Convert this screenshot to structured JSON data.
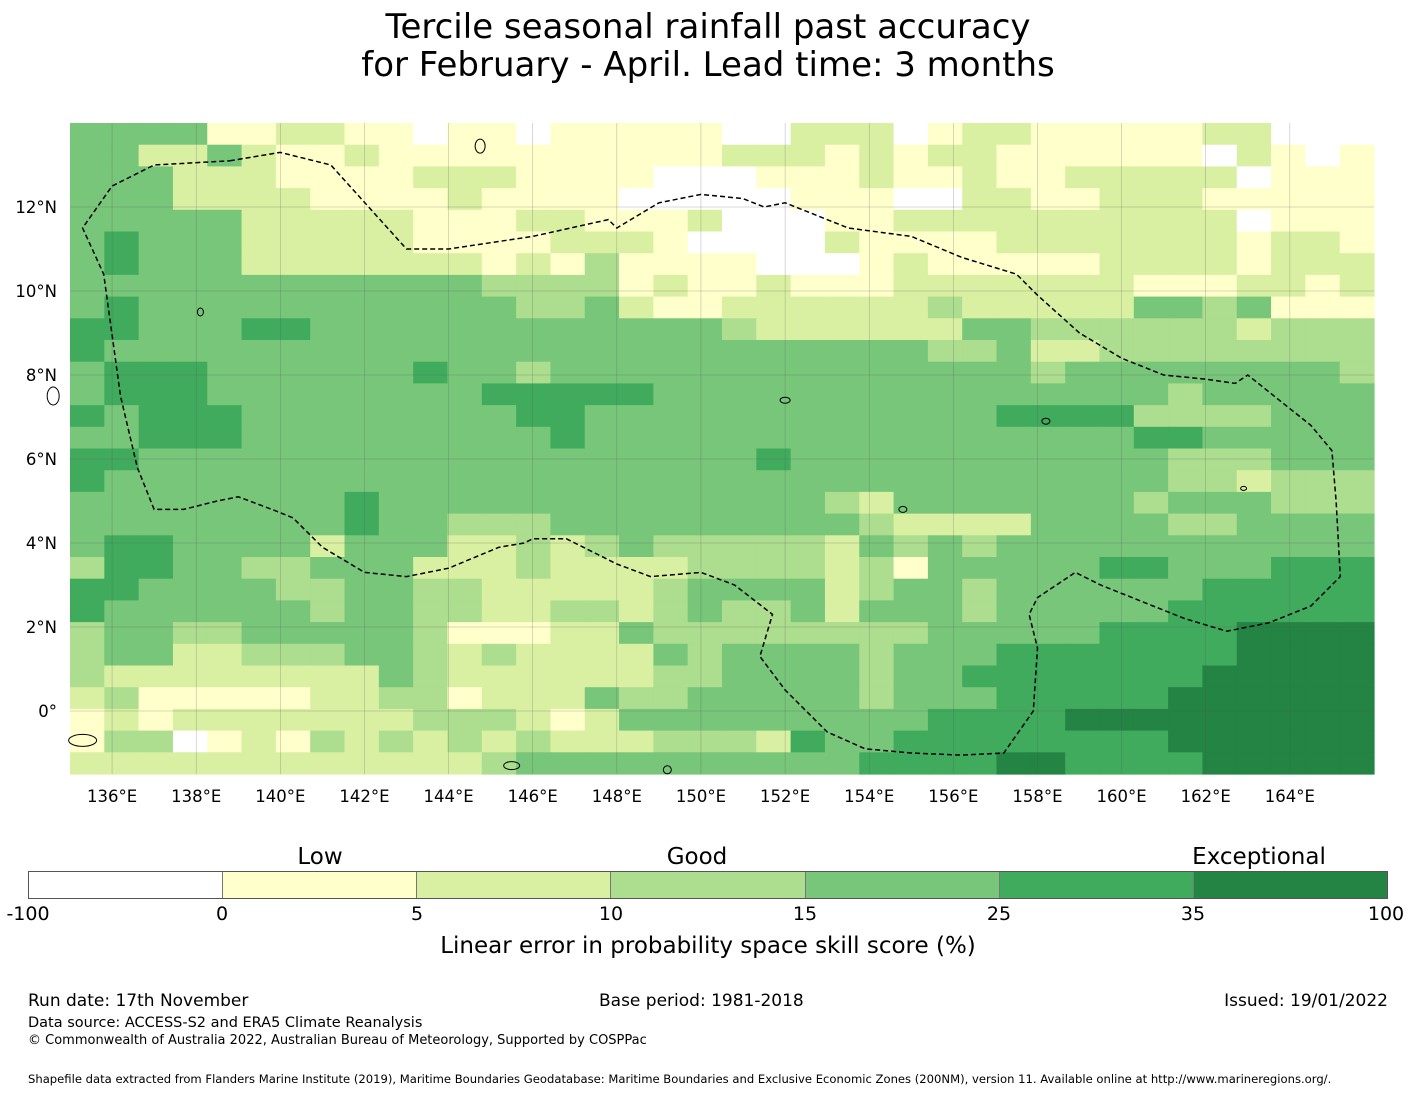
{
  "title": {
    "line1": "Tercile seasonal rainfall past accuracy",
    "line2": "for February - April. Lead time: 3 months"
  },
  "map": {
    "lon_range": [
      135.0,
      166.0
    ],
    "lat_range": [
      -1.5,
      14.0
    ],
    "lon_ticks": [
      "136°E",
      "138°E",
      "140°E",
      "142°E",
      "144°E",
      "146°E",
      "148°E",
      "150°E",
      "152°E",
      "154°E",
      "156°E",
      "158°E",
      "160°E",
      "162°E",
      "164°E"
    ],
    "lat_ticks": [
      "12°N",
      "10°N",
      "8°N",
      "6°N",
      "4°N",
      "2°N",
      "0°"
    ],
    "colors": {
      "c0": "#ffffff",
      "c1": "#ffffcc",
      "c2": "#d9f0a3",
      "c3": "#addd8e",
      "c4": "#78c679",
      "c5": "#41ab5d",
      "c6": "#238443"
    },
    "grid_rows": [
      "44441122110110111110022201221111122000",
      "44224211211111111112221212211111102101",
      "44422211112221111000111211211222220111",
      "44422221111211110000011100221122211111",
      "44444222221112211120001122222222220111",
      "45444222221111222100002111122222221221",
      "45444222222212131111000121111122221222",
      "44444444444433331211211122222221112212",
      "45444444444443342112222223222224434111",
      "55444554444444444443222222443333332333",
      "54444444444444444444444443342233333333",
      "45554444445443444444444444443444444443",
      "45554444444455555444444444444444344444",
      "54555444444445544444444444455553333444",
      "44555444444444544444444444444445544444",
      "55444444444444444444544444444444333444",
      "54444444444444444444444444444444332333",
      "44444444544444444444443244444443444333",
      "44444444544333444444444322224444334444",
      "45544442444223234333332434344444444444",
      "35544334442223222233332314444455444555",
      "55444433443322222344442344344444455555",
      "54444443443322332343342444344444555555",
      "34433444443111224333333334444455556666",
      "34422333443232222434444344455555556666",
      "32222222243222222334444344555555566666",
      "23111112233122243344444344455555666666",
      "12122222223332124444444445555666666666",
      "13301213232323222333254455555555666666",
      "22222222222234444444444555566555566666"
    ],
    "eez_boundary": [
      [
        138.8,
        13.1
      ],
      [
        140.0,
        13.3
      ],
      [
        141.2,
        13.0
      ],
      [
        143.0,
        11.0
      ],
      [
        144.0,
        11.0
      ],
      [
        146.0,
        11.3
      ],
      [
        147.8,
        11.7
      ],
      [
        148.0,
        11.5
      ],
      [
        149.0,
        12.1
      ],
      [
        150.0,
        12.3
      ],
      [
        151.0,
        12.2
      ],
      [
        151.5,
        12.0
      ],
      [
        152.0,
        12.1
      ],
      [
        153.5,
        11.5
      ],
      [
        155.0,
        11.3
      ],
      [
        156.2,
        10.8
      ],
      [
        157.5,
        10.4
      ],
      [
        158.0,
        9.9
      ],
      [
        159.0,
        9.0
      ],
      [
        160.0,
        8.4
      ],
      [
        161.0,
        8.0
      ],
      [
        162.0,
        7.9
      ],
      [
        162.7,
        7.8
      ],
      [
        163.0,
        8.0
      ],
      [
        164.5,
        6.8
      ],
      [
        165.0,
        6.2
      ],
      [
        165.1,
        5.0
      ],
      [
        165.2,
        3.2
      ],
      [
        164.5,
        2.5
      ],
      [
        163.5,
        2.1
      ],
      [
        162.5,
        1.9
      ],
      [
        161.5,
        2.2
      ],
      [
        160.5,
        2.6
      ],
      [
        159.5,
        3.0
      ],
      [
        158.9,
        3.3
      ],
      [
        158.0,
        2.7
      ],
      [
        157.8,
        2.3
      ],
      [
        158.0,
        1.5
      ],
      [
        157.9,
        0.0
      ],
      [
        157.2,
        -1.0
      ],
      [
        156.2,
        -1.05
      ],
      [
        155.0,
        -1.0
      ],
      [
        153.9,
        -0.9
      ],
      [
        153.0,
        -0.5
      ],
      [
        152.0,
        0.5
      ],
      [
        151.4,
        1.3
      ],
      [
        151.7,
        2.3
      ],
      [
        150.8,
        3.0
      ],
      [
        150.0,
        3.3
      ],
      [
        148.8,
        3.2
      ],
      [
        148.0,
        3.5
      ],
      [
        147.2,
        3.9
      ],
      [
        146.8,
        4.1
      ],
      [
        146.0,
        4.1
      ],
      [
        145.8,
        4.0
      ],
      [
        145.2,
        3.9
      ],
      [
        144.0,
        3.4
      ],
      [
        143.0,
        3.2
      ],
      [
        142.0,
        3.3
      ],
      [
        141.0,
        3.9
      ],
      [
        140.3,
        4.6
      ],
      [
        139.8,
        4.8
      ],
      [
        139.0,
        5.1
      ],
      [
        138.5,
        5.0
      ],
      [
        137.7,
        4.8
      ],
      [
        137.0,
        4.8
      ],
      [
        136.6,
        5.8
      ],
      [
        136.2,
        7.5
      ],
      [
        135.8,
        10.4
      ],
      [
        135.3,
        11.5
      ],
      [
        136.0,
        12.5
      ],
      [
        137.0,
        13.0
      ],
      [
        138.8,
        13.1
      ]
    ]
  },
  "colorbar": {
    "labels": {
      "low": "Low",
      "good": "Good",
      "exceptional": "Exceptional"
    },
    "ticks": [
      "-100",
      "0",
      "5",
      "10",
      "15",
      "25",
      "35",
      "100"
    ],
    "title": "Linear error in probability space skill score (%)",
    "segment_colors": [
      "#ffffff",
      "#ffffcc",
      "#d9f0a3",
      "#addd8e",
      "#78c679",
      "#41ab5d",
      "#238443"
    ]
  },
  "footer": {
    "run_date": "Run date: 17th November",
    "base_period": "Base period: 1981-2018",
    "issued": "Issued: 19/01/2022",
    "data_source": "Data source: ACCESS-S2 and ERA5 Climate Reanalysis",
    "copyright": "© Commonwealth of Australia 2022, Australian Bureau of Meteorology, Supported by COSPPac",
    "shapefile": "Shapefile data extracted from Flanders Marine Institute (2019), Maritime Boundaries Geodatabase: Maritime Boundaries and Exclusive Economic Zones (200NM), version 11. Available online at http://www.marineregions.org/."
  }
}
